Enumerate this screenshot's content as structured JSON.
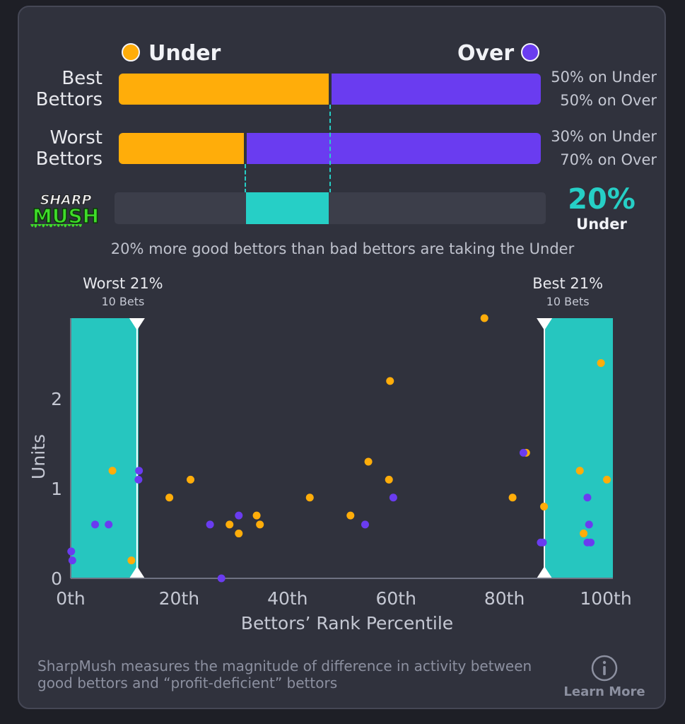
{
  "legend": {
    "under": "Under",
    "over": "Over"
  },
  "colors": {
    "under": "#ffad0a",
    "over": "#6a3cf0",
    "accent": "#26cfc6",
    "card": "#30323d"
  },
  "rows": [
    {
      "label_line1": "Best",
      "label_line2": "Bettors",
      "under_pct": 50,
      "over_pct": 50,
      "under_text": "50% on Under",
      "over_text": "50% on Over"
    },
    {
      "label_line1": "Worst",
      "label_line2": "Bettors",
      "under_pct": 30,
      "over_pct": 70,
      "under_text": "30% on Under",
      "over_text": "70% on Over"
    }
  ],
  "sharpmush": {
    "logo_line1": "SHARP",
    "logo_line2": "MUSH",
    "value_text": "20%",
    "side": "Under",
    "from_pct": 30,
    "to_pct": 50,
    "caption": "20% more good bettors than bad bettors are taking the Under"
  },
  "chart_data": {
    "type": "scatter",
    "xlabel": "Bettors’ Rank Percentile",
    "ylabel": "Units",
    "xlim": [
      0,
      100
    ],
    "ylim": [
      0,
      2.9
    ],
    "x_ticks": [
      0,
      20,
      40,
      60,
      80,
      100
    ],
    "x_tick_labels": [
      "0th",
      "20th",
      "40th",
      "60th",
      "80th",
      "100th"
    ],
    "y_ticks": [
      0,
      1,
      2
    ],
    "y_tick_labels": [
      "0",
      "1",
      "2"
    ],
    "worst_band": {
      "label": "Worst 21%",
      "sub": "10 Bets",
      "from": 0,
      "to": 12.5
    },
    "best_band": {
      "label": "Best 21%",
      "sub": "10 Bets",
      "from": 87.5,
      "to": 100
    },
    "series": [
      {
        "name": "Under",
        "color": "#ffad0a",
        "points": [
          [
            7.7,
            1.2
          ],
          [
            11.2,
            0.2
          ],
          [
            18.2,
            0.9
          ],
          [
            22.1,
            1.1
          ],
          [
            29.3,
            0.6
          ],
          [
            31.0,
            0.5
          ],
          [
            34.3,
            0.7
          ],
          [
            34.9,
            0.6
          ],
          [
            44.1,
            0.9
          ],
          [
            51.6,
            0.7
          ],
          [
            54.9,
            1.3
          ],
          [
            58.9,
            2.2
          ],
          [
            58.7,
            1.1
          ],
          [
            76.3,
            2.9
          ],
          [
            81.5,
            0.9
          ],
          [
            84.0,
            1.4
          ],
          [
            87.3,
            0.8
          ],
          [
            93.9,
            1.2
          ],
          [
            94.6,
            0.5
          ],
          [
            97.8,
            2.4
          ],
          [
            98.9,
            1.1
          ]
        ]
      },
      {
        "name": "Over",
        "color": "#6a3cf0",
        "points": [
          [
            0.1,
            0.3
          ],
          [
            0.3,
            0.2
          ],
          [
            4.5,
            0.6
          ],
          [
            7.0,
            0.6
          ],
          [
            12.6,
            1.2
          ],
          [
            12.5,
            1.1
          ],
          [
            25.7,
            0.6
          ],
          [
            27.8,
            0.0
          ],
          [
            31.0,
            0.7
          ],
          [
            54.3,
            0.6
          ],
          [
            59.5,
            0.9
          ],
          [
            83.5,
            1.4
          ],
          [
            86.7,
            0.4
          ],
          [
            87.1,
            0.4
          ],
          [
            95.3,
            0.9
          ],
          [
            95.6,
            0.6
          ],
          [
            95.3,
            0.4
          ],
          [
            95.9,
            0.4
          ]
        ]
      }
    ]
  },
  "footer": {
    "text": "SharpMush measures the magnitude of difference in activity between good bettors and “profit-deficient” bettors",
    "learn_more": "Learn More"
  }
}
